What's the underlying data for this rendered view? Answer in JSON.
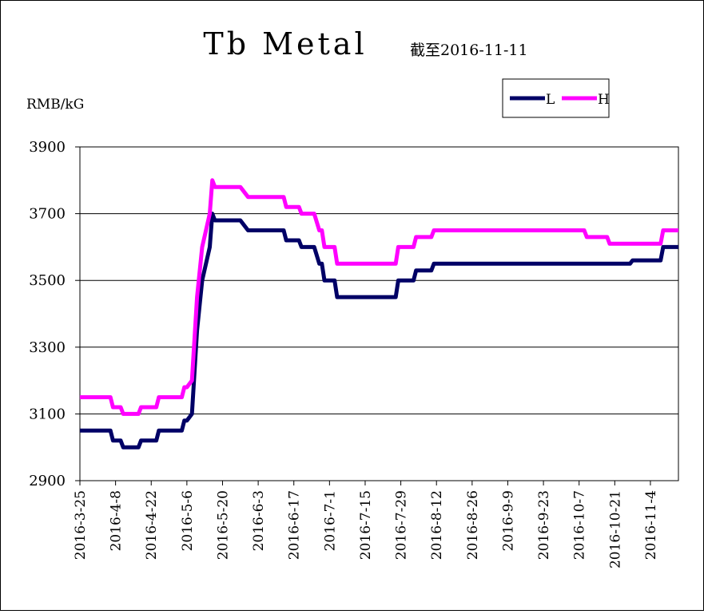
{
  "chart_data": {
    "type": "line",
    "title": "Tb Metal",
    "subtitle": "截至2016-11-11",
    "ylabel": "RMB/kG",
    "xlabel": "",
    "ylim": [
      2900,
      3900
    ],
    "yticks": [
      2900,
      3100,
      3300,
      3500,
      3700,
      3900
    ],
    "grid": "horizontal",
    "legend_position": "top-right",
    "x_range": [
      "2016-3-25",
      "2016-11-15"
    ],
    "x_tick_labels": [
      "2016-3-25",
      "2016-4-8",
      "2016-4-22",
      "2016-5-6",
      "2016-5-20",
      "2016-6-3",
      "2016-6-17",
      "2016-7-1",
      "2016-7-15",
      "2016-7-29",
      "2016-8-12",
      "2016-8-26",
      "2016-9-9",
      "2016-9-23",
      "2016-10-7",
      "2016-10-21",
      "2016-11-4"
    ],
    "series": [
      {
        "name": "L",
        "color": "#000066",
        "points": [
          [
            "2016-3-25",
            3050
          ],
          [
            "2016-4-6",
            3050
          ],
          [
            "2016-4-7",
            3020
          ],
          [
            "2016-4-10",
            3020
          ],
          [
            "2016-4-11",
            3000
          ],
          [
            "2016-4-17",
            3000
          ],
          [
            "2016-4-18",
            3020
          ],
          [
            "2016-4-24",
            3020
          ],
          [
            "2016-4-25",
            3050
          ],
          [
            "2016-5-4",
            3050
          ],
          [
            "2016-5-5",
            3080
          ],
          [
            "2016-5-6",
            3080
          ],
          [
            "2016-5-8",
            3100
          ],
          [
            "2016-5-10",
            3350
          ],
          [
            "2016-5-12",
            3500
          ],
          [
            "2016-5-15",
            3600
          ],
          [
            "2016-5-16",
            3700
          ],
          [
            "2016-5-17",
            3680
          ],
          [
            "2016-5-27",
            3680
          ],
          [
            "2016-5-30",
            3650
          ],
          [
            "2016-6-13",
            3650
          ],
          [
            "2016-6-14",
            3620
          ],
          [
            "2016-6-19",
            3620
          ],
          [
            "2016-6-20",
            3600
          ],
          [
            "2016-6-25",
            3600
          ],
          [
            "2016-6-27",
            3550
          ],
          [
            "2016-6-28",
            3550
          ],
          [
            "2016-6-29",
            3500
          ],
          [
            "2016-7-3",
            3500
          ],
          [
            "2016-7-4",
            3450
          ],
          [
            "2016-7-27",
            3450
          ],
          [
            "2016-7-28",
            3500
          ],
          [
            "2016-8-3",
            3500
          ],
          [
            "2016-8-4",
            3530
          ],
          [
            "2016-8-10",
            3530
          ],
          [
            "2016-8-11",
            3550
          ],
          [
            "2016-10-27",
            3550
          ],
          [
            "2016-10-28",
            3560
          ],
          [
            "2016-11-8",
            3560
          ],
          [
            "2016-11-9",
            3600
          ],
          [
            "2016-11-15",
            3600
          ]
        ]
      },
      {
        "name": "H",
        "color": "#ff00ff",
        "points": [
          [
            "2016-3-25",
            3150
          ],
          [
            "2016-4-6",
            3150
          ],
          [
            "2016-4-7",
            3120
          ],
          [
            "2016-4-10",
            3120
          ],
          [
            "2016-4-11",
            3100
          ],
          [
            "2016-4-17",
            3100
          ],
          [
            "2016-4-18",
            3120
          ],
          [
            "2016-4-24",
            3120
          ],
          [
            "2016-4-25",
            3150
          ],
          [
            "2016-5-4",
            3150
          ],
          [
            "2016-5-5",
            3180
          ],
          [
            "2016-5-6",
            3180
          ],
          [
            "2016-5-8",
            3200
          ],
          [
            "2016-5-10",
            3450
          ],
          [
            "2016-5-12",
            3600
          ],
          [
            "2016-5-15",
            3700
          ],
          [
            "2016-5-16",
            3800
          ],
          [
            "2016-5-17",
            3780
          ],
          [
            "2016-5-27",
            3780
          ],
          [
            "2016-5-30",
            3750
          ],
          [
            "2016-6-13",
            3750
          ],
          [
            "2016-6-14",
            3720
          ],
          [
            "2016-6-19",
            3720
          ],
          [
            "2016-6-20",
            3700
          ],
          [
            "2016-6-25",
            3700
          ],
          [
            "2016-6-27",
            3650
          ],
          [
            "2016-6-28",
            3650
          ],
          [
            "2016-6-29",
            3600
          ],
          [
            "2016-7-3",
            3600
          ],
          [
            "2016-7-4",
            3550
          ],
          [
            "2016-7-27",
            3550
          ],
          [
            "2016-7-28",
            3600
          ],
          [
            "2016-8-3",
            3600
          ],
          [
            "2016-8-4",
            3630
          ],
          [
            "2016-8-10",
            3630
          ],
          [
            "2016-8-11",
            3650
          ],
          [
            "2016-10-9",
            3650
          ],
          [
            "2016-10-10",
            3630
          ],
          [
            "2016-10-18",
            3630
          ],
          [
            "2016-10-19",
            3610
          ],
          [
            "2016-11-8",
            3610
          ],
          [
            "2016-11-9",
            3650
          ],
          [
            "2016-11-15",
            3650
          ]
        ]
      }
    ]
  }
}
